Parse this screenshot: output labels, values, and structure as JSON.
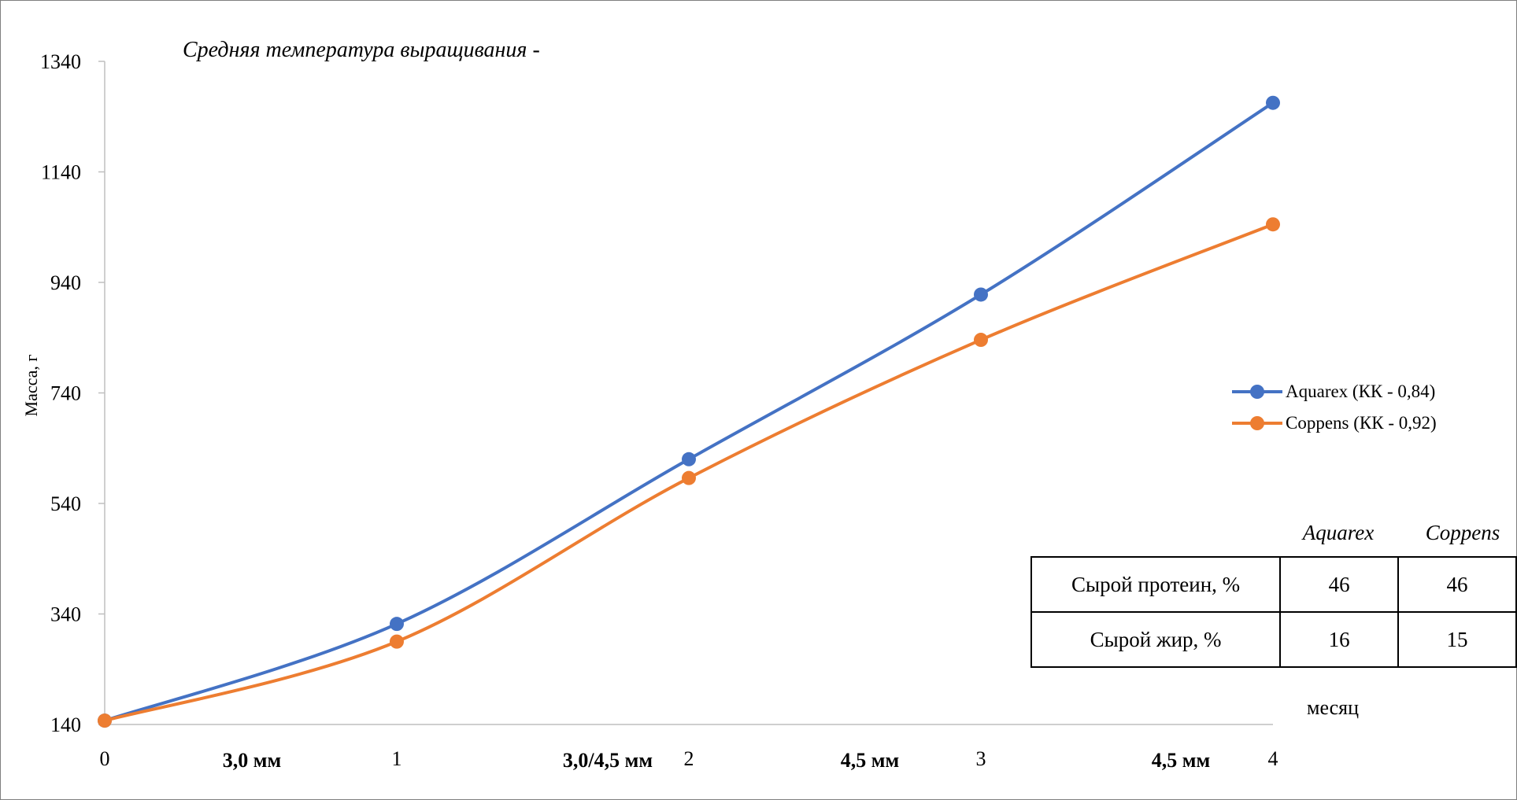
{
  "chart_data": {
    "type": "line",
    "title": "Средняя температура выращивания -",
    "xlabel": "месяц",
    "ylabel": "Масса, г",
    "x": [
      0,
      1,
      2,
      3,
      4
    ],
    "x_tick_labels": [
      "0",
      "1",
      "2",
      "3",
      "4"
    ],
    "ylim": [
      140,
      1340
    ],
    "y_ticks": [
      140,
      340,
      540,
      740,
      940,
      1140,
      1340
    ],
    "y_tick_labels": [
      "140",
      "340",
      "540",
      "740",
      "940",
      "1140",
      "1340"
    ],
    "grid": false,
    "legend_position": "right",
    "series": [
      {
        "name": "Aquarex (КК - 0,84)",
        "color": "#4472c4",
        "values": [
          147,
          322,
          620,
          918,
          1265
        ]
      },
      {
        "name": "Coppens (КК - 0,92)",
        "color": "#ed7d31",
        "values": [
          147,
          290,
          586,
          836,
          1045
        ]
      }
    ],
    "feed_size_labels": [
      "3,0 мм",
      "3,0/4,5 мм",
      "4,5 мм",
      "4,5 мм"
    ],
    "table": {
      "columns": [
        "Aquarex",
        "Coppens"
      ],
      "rows": [
        {
          "label": "Сырой протеин, %",
          "values": [
            "46",
            "46"
          ]
        },
        {
          "label": "Сырой жир, %",
          "values": [
            "16",
            "15"
          ]
        }
      ]
    }
  }
}
